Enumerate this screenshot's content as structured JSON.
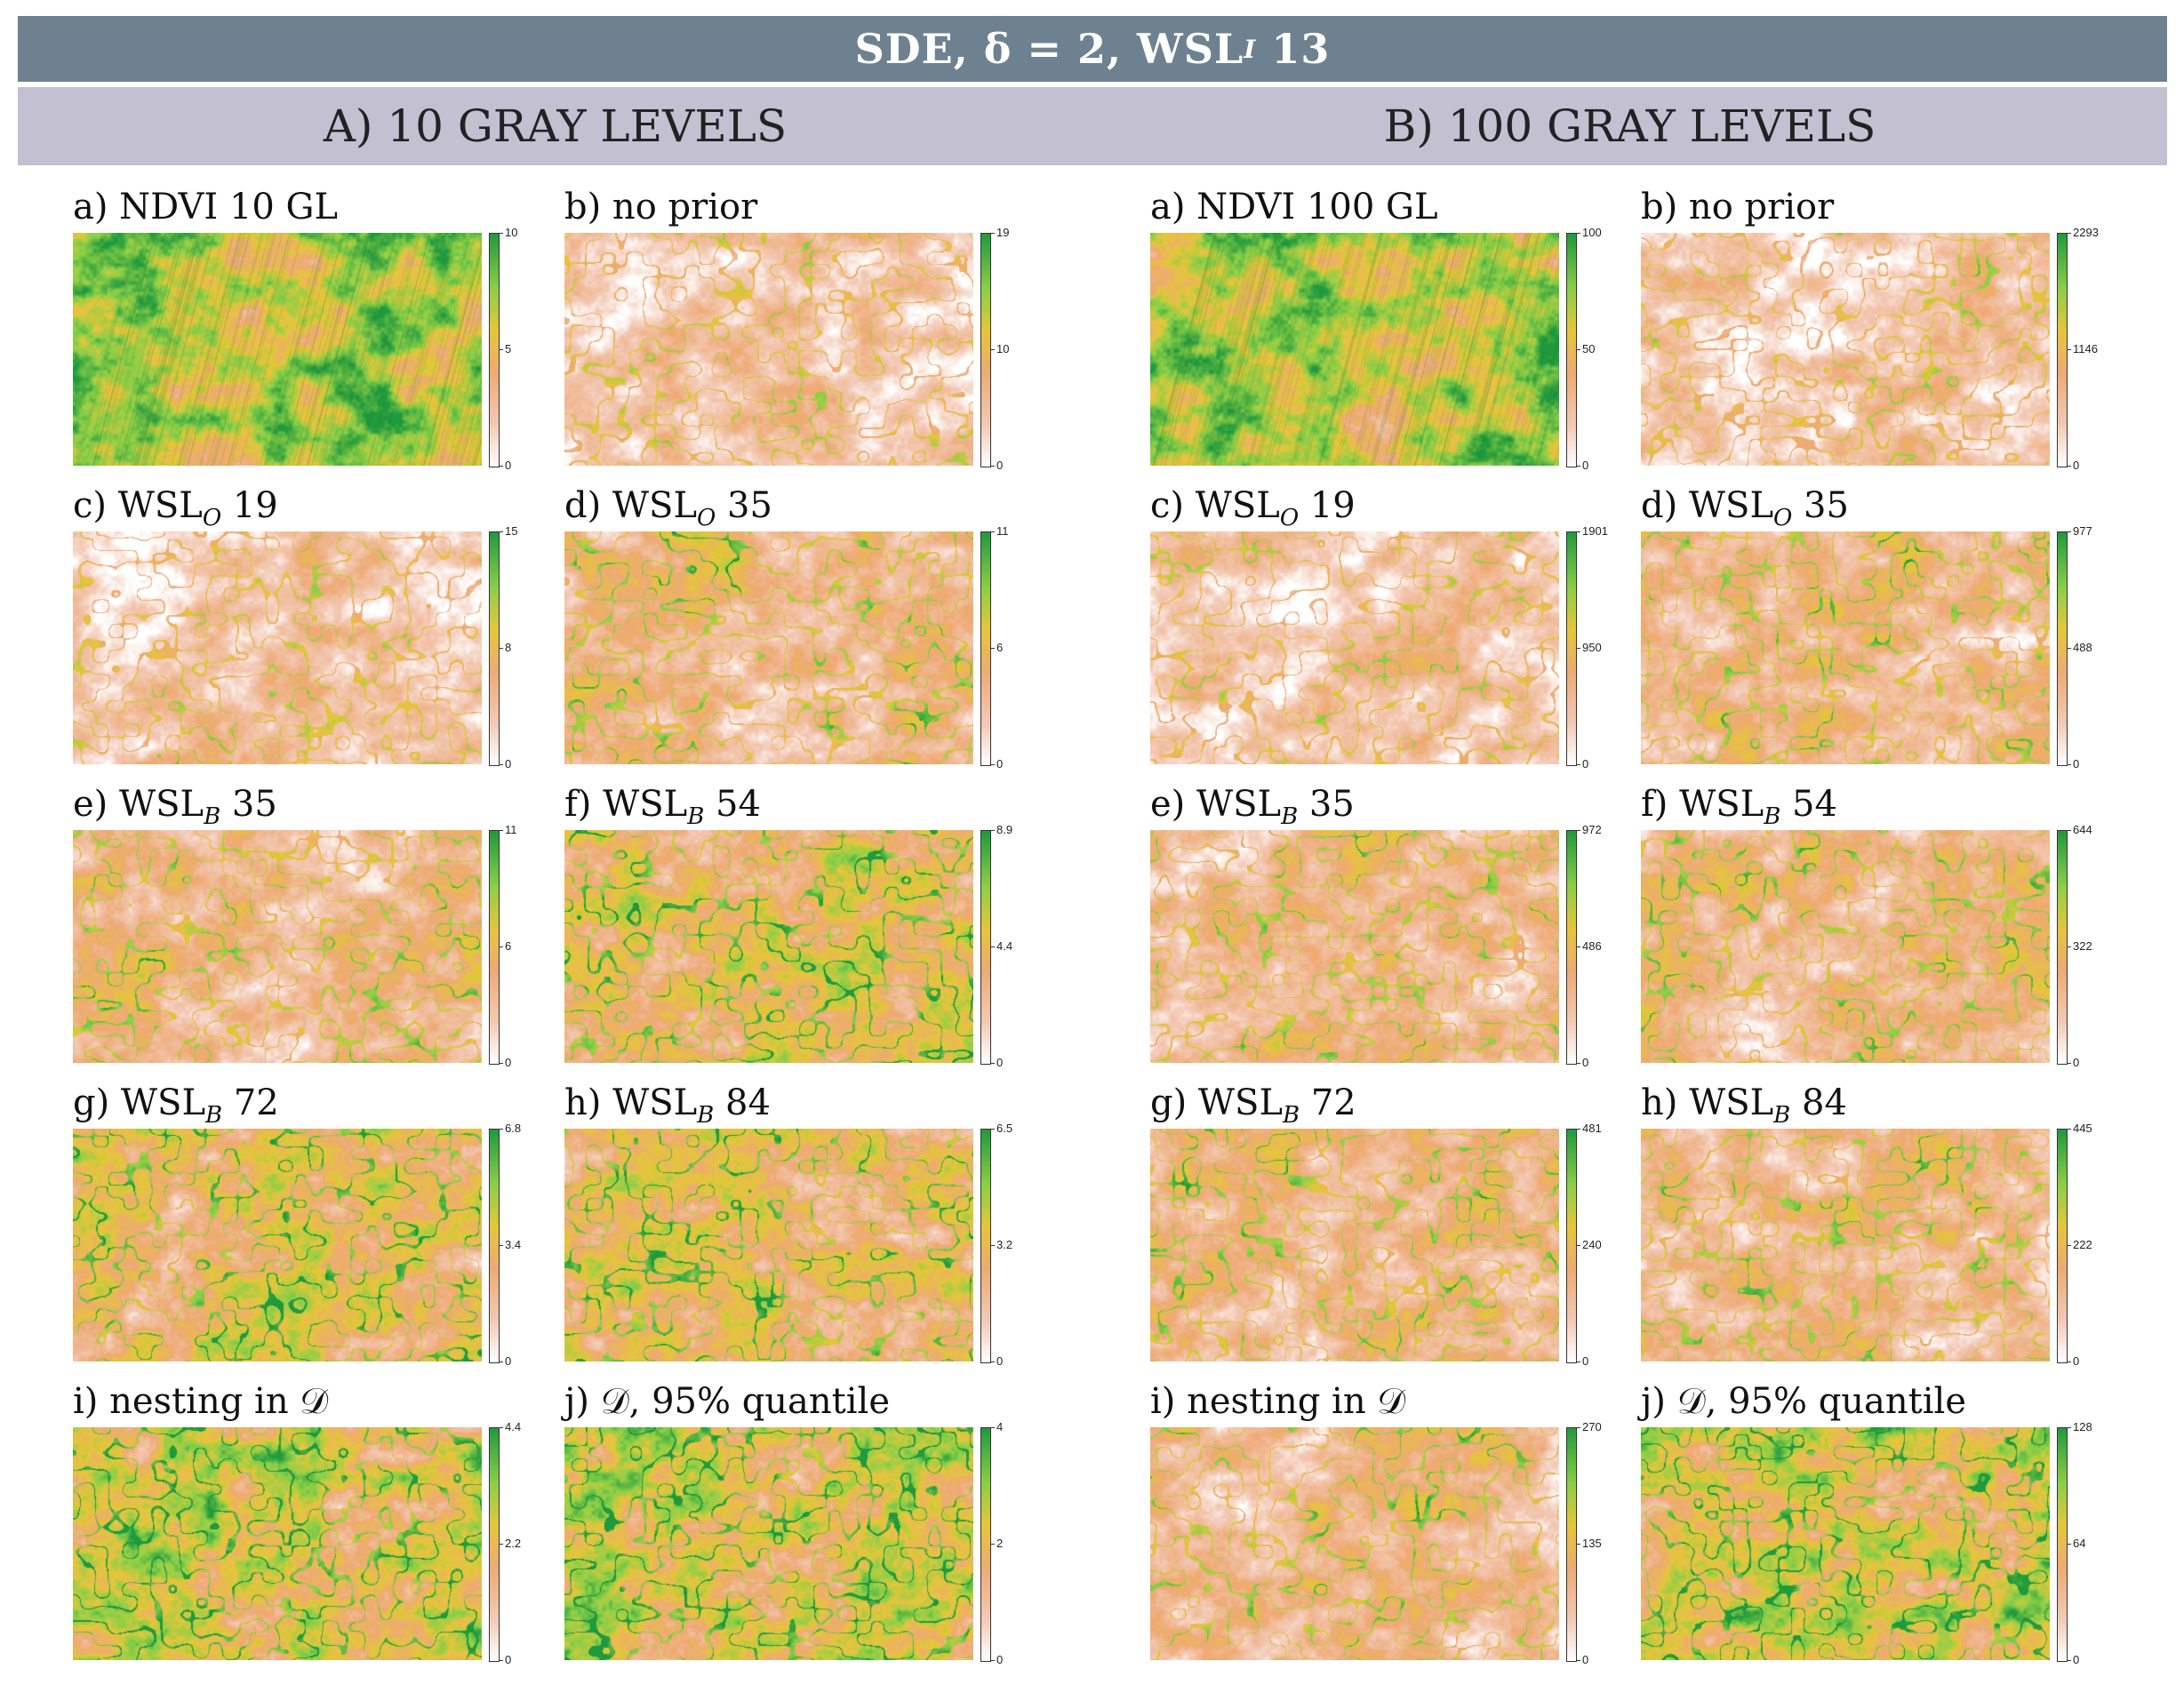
{
  "title": "SDE, δ = 2, WSL",
  "title_sub": "I",
  "title_tail": " 13",
  "columns": [
    {
      "label": "A) 10 GRAY LEVELS"
    },
    {
      "label": "B) 100 GRAY LEVELS"
    }
  ],
  "panels": [
    {
      "pre": "a) NDVI 10 GL",
      "sub": "",
      "post": "",
      "ticks": [
        "10",
        "5",
        "0"
      ],
      "style": "ndvi"
    },
    {
      "pre": "b) no prior",
      "sub": "",
      "post": "",
      "ticks": [
        "19",
        "10",
        "0"
      ],
      "style": "pale"
    },
    {
      "pre": "a) NDVI 100 GL",
      "sub": "",
      "post": "",
      "ticks": [
        "100",
        "50",
        "0"
      ],
      "style": "ndvi"
    },
    {
      "pre": "b) no prior",
      "sub": "",
      "post": "",
      "ticks": [
        "2293",
        "1146",
        "0"
      ],
      "style": "pale"
    },
    {
      "pre": "c) WSL",
      "sub": "O",
      "post": " 19",
      "ticks": [
        "15",
        "8",
        "0"
      ],
      "style": "pale"
    },
    {
      "pre": "d) WSL",
      "sub": "O",
      "post": " 35",
      "ticks": [
        "11",
        "6",
        "0"
      ],
      "style": "mid"
    },
    {
      "pre": "c) WSL",
      "sub": "O",
      "post": " 19",
      "ticks": [
        "1901",
        "950",
        "0"
      ],
      "style": "pale"
    },
    {
      "pre": "d) WSL",
      "sub": "O",
      "post": " 35",
      "ticks": [
        "977",
        "488",
        "0"
      ],
      "style": "mid"
    },
    {
      "pre": "e) WSL",
      "sub": "B",
      "post": " 35",
      "ticks": [
        "11",
        "6",
        "0"
      ],
      "style": "mid"
    },
    {
      "pre": "f) WSL",
      "sub": "B",
      "post": " 54",
      "ticks": [
        "8.9",
        "4.4",
        "0"
      ],
      "style": "green"
    },
    {
      "pre": "e) WSL",
      "sub": "B",
      "post": " 35",
      "ticks": [
        "972",
        "486",
        "0"
      ],
      "style": "mid"
    },
    {
      "pre": "f) WSL",
      "sub": "B",
      "post": " 54",
      "ticks": [
        "644",
        "322",
        "0"
      ],
      "style": "mid"
    },
    {
      "pre": "g) WSL",
      "sub": "B",
      "post": " 72",
      "ticks": [
        "6.8",
        "3.4",
        "0"
      ],
      "style": "green"
    },
    {
      "pre": "h) WSL",
      "sub": "B",
      "post": " 84",
      "ticks": [
        "6.5",
        "3.2",
        "0"
      ],
      "style": "green"
    },
    {
      "pre": "g) WSL",
      "sub": "B",
      "post": " 72",
      "ticks": [
        "481",
        "240",
        "0"
      ],
      "style": "mid"
    },
    {
      "pre": "h) WSL",
      "sub": "B",
      "post": " 84",
      "ticks": [
        "445",
        "222",
        "0"
      ],
      "style": "mid"
    },
    {
      "pre": "i) nesting in 𝒟",
      "sub": "",
      "post": "",
      "ticks": [
        "4.4",
        "2.2",
        "0"
      ],
      "style": "dense"
    },
    {
      "pre": "j) 𝒟, 95% quantile",
      "sub": "",
      "post": "",
      "ticks": [
        "4",
        "2",
        "0"
      ],
      "style": "dense"
    },
    {
      "pre": "i) nesting in 𝒟",
      "sub": "",
      "post": "",
      "ticks": [
        "270",
        "135",
        "0"
      ],
      "style": "mid"
    },
    {
      "pre": "j) 𝒟, 95% quantile",
      "sub": "",
      "post": "",
      "ticks": [
        "128",
        "64",
        "0"
      ],
      "style": "dense"
    }
  ],
  "palette": {
    "banner": "#6e8190",
    "subbar": "#c3c0d2",
    "white": "#ffffff",
    "pink": "#f3c9b4",
    "orange": "#eeaa73",
    "yellow": "#e5c63a",
    "lightgreen": "#8ccf47",
    "darkgreen": "#1f9a3d"
  }
}
